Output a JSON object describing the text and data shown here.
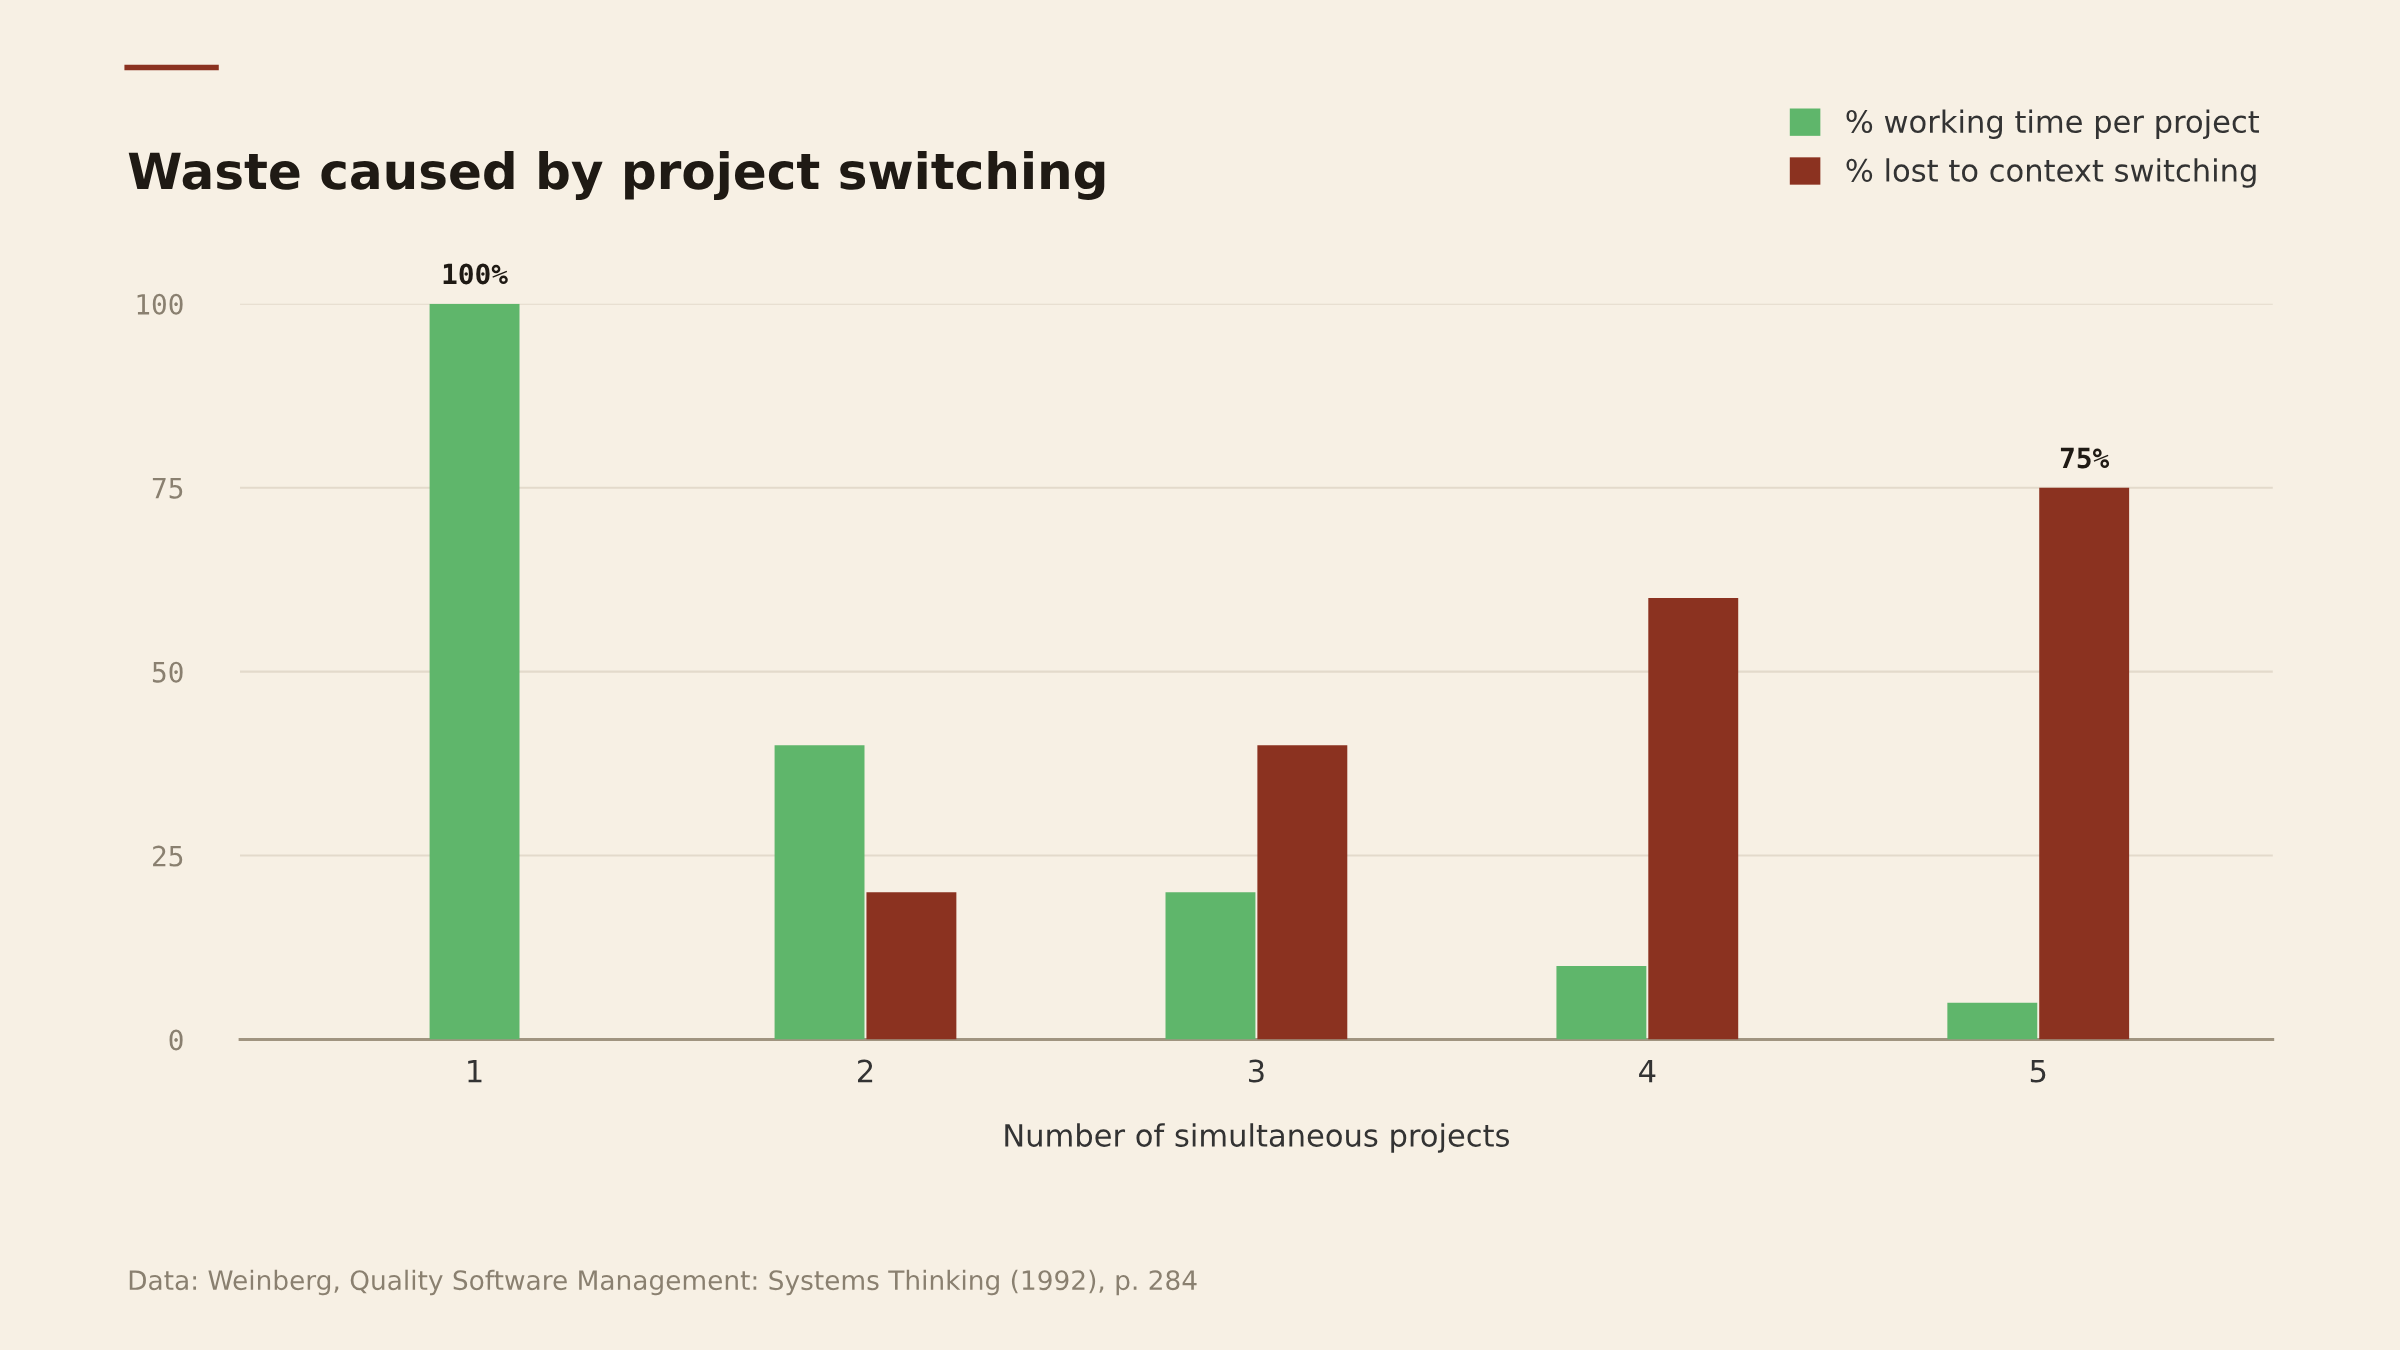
{
  "chart_data": {
    "type": "bar",
    "title": "Waste caused by project switching",
    "xlabel": "Number of simultaneous projects",
    "categories": [
      "1",
      "2",
      "3",
      "4",
      "5"
    ],
    "series": [
      {
        "name": "% working time per project",
        "color": "#5fb66b",
        "values": [
          100,
          40,
          20,
          10,
          5
        ],
        "value_labels": [
          "100%",
          null,
          null,
          null,
          null
        ]
      },
      {
        "name": "% lost to context switching",
        "color": "#8b3220",
        "values": [
          null,
          20,
          40,
          60,
          75
        ],
        "value_labels": [
          null,
          null,
          null,
          null,
          "75%"
        ]
      }
    ],
    "ylim": [
      0,
      100
    ],
    "yticks": [
      0,
      25,
      50,
      75,
      100
    ],
    "grid": "y",
    "legend": "top right",
    "annotations": [
      "Data: Weinberg, Quality Software Management: Systems Thinking (1992), p. 284"
    ]
  }
}
